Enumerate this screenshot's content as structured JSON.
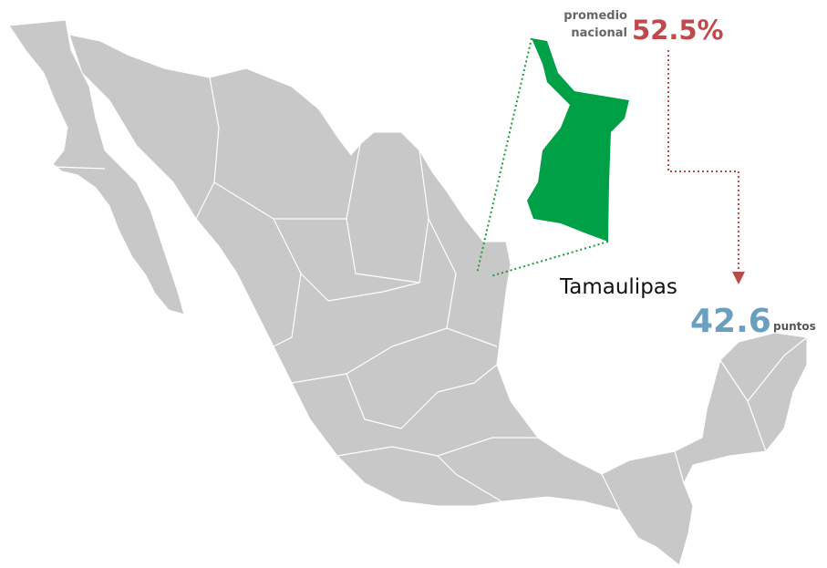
{
  "national_average": {
    "label_lines": [
      "promedio",
      "nacional"
    ],
    "value": "52.5%"
  },
  "state": {
    "name": "Tamaulipas",
    "value": "42.6",
    "unit": "puntos"
  }
}
